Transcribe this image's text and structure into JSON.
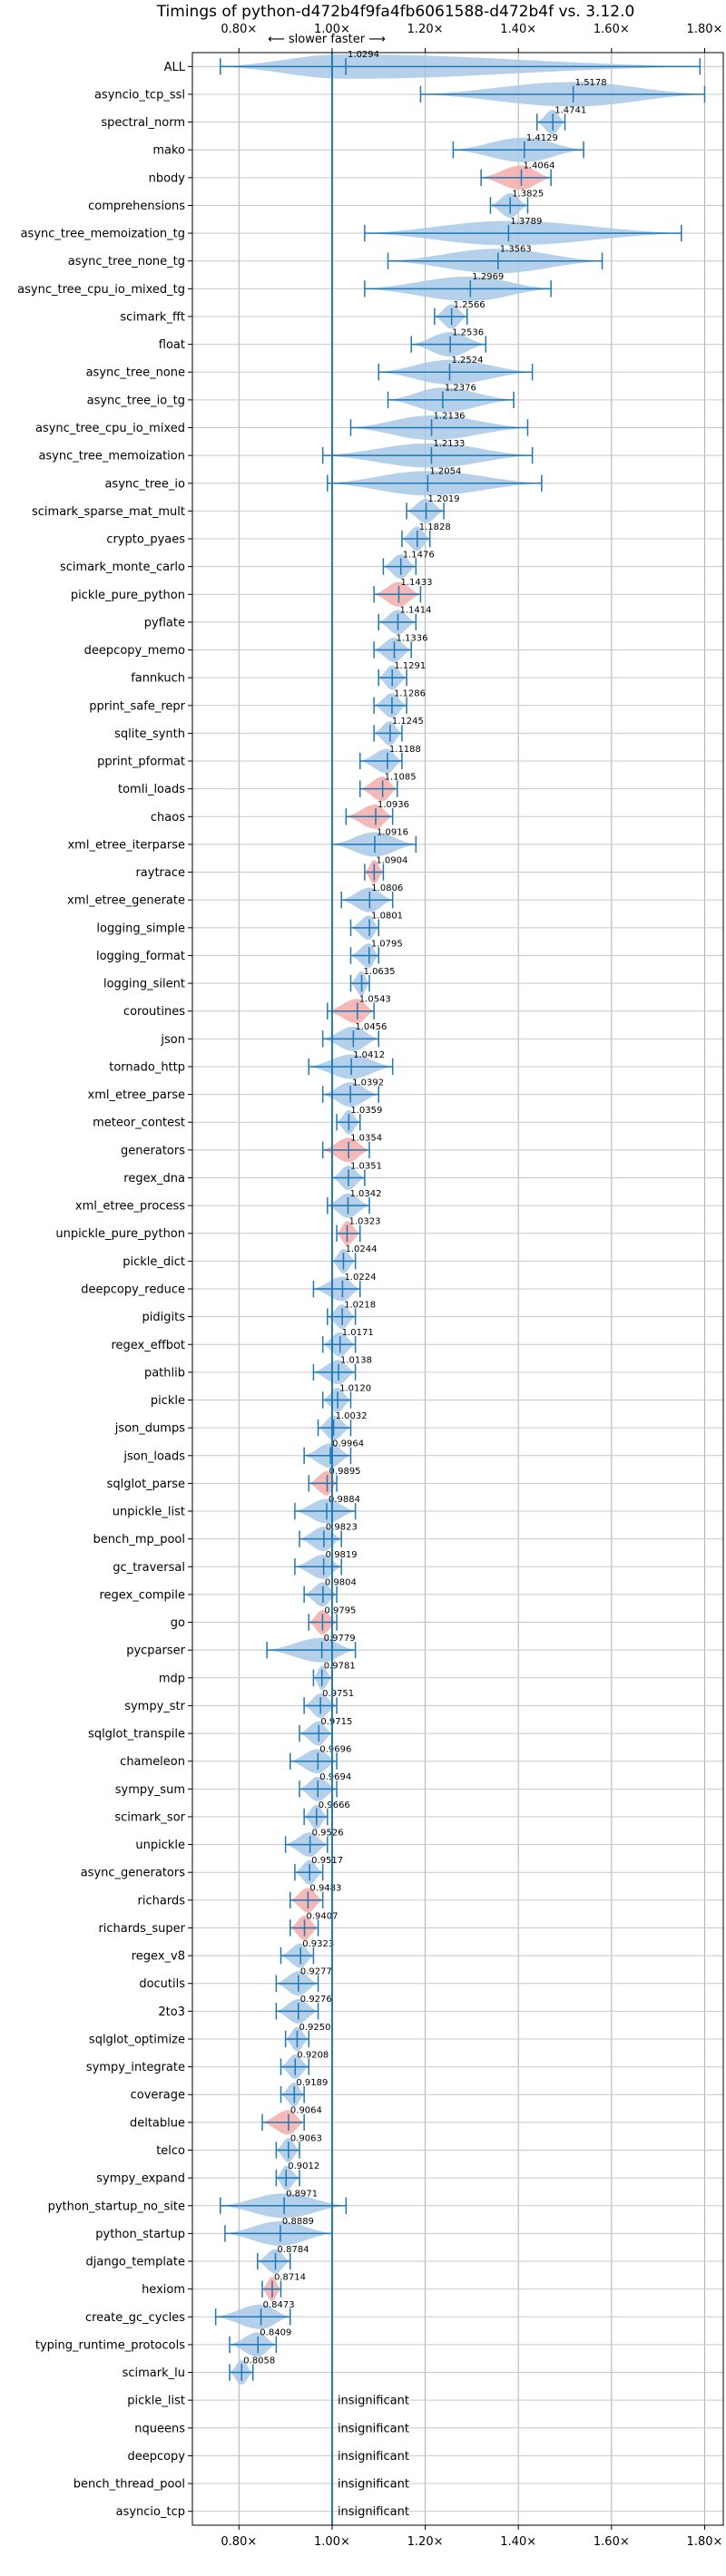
{
  "chart_data": {
    "type": "violin",
    "title": "Timings of python-d472b4f9fa4fb6061588-d472b4f vs. 3.12.0",
    "subtitle": "⟵ slower   faster ⟶",
    "xlim": [
      0.7,
      1.84
    ],
    "x_ticks": [
      0.8,
      1.0,
      1.2,
      1.4,
      1.6,
      1.8
    ],
    "x_tick_labels": [
      "0.80×",
      "1.00×",
      "1.20×",
      "1.40×",
      "1.60×",
      "1.80×"
    ],
    "reference_line": 1.0,
    "grid": true,
    "colors": {
      "faster": "#a8c8e6",
      "slower": "#f5aaaa",
      "line": "#1f77b4"
    },
    "insignificant_label": "insignificant",
    "benchmarks": [
      {
        "name": "ALL",
        "value": 1.0294,
        "min": 0.76,
        "max": 1.79,
        "dir": "faster"
      },
      {
        "name": "asyncio_tcp_ssl",
        "value": 1.5178,
        "min": 1.19,
        "max": 1.8,
        "dir": "faster"
      },
      {
        "name": "spectral_norm",
        "value": 1.4741,
        "min": 1.44,
        "max": 1.5,
        "dir": "faster"
      },
      {
        "name": "mako",
        "value": 1.4129,
        "min": 1.26,
        "max": 1.54,
        "dir": "faster"
      },
      {
        "name": "nbody",
        "value": 1.4064,
        "min": 1.32,
        "max": 1.47,
        "dir": "slower"
      },
      {
        "name": "comprehensions",
        "value": 1.3825,
        "min": 1.34,
        "max": 1.42,
        "dir": "faster"
      },
      {
        "name": "async_tree_memoization_tg",
        "value": 1.3789,
        "min": 1.07,
        "max": 1.75,
        "dir": "faster"
      },
      {
        "name": "async_tree_none_tg",
        "value": 1.3563,
        "min": 1.12,
        "max": 1.58,
        "dir": "faster"
      },
      {
        "name": "async_tree_cpu_io_mixed_tg",
        "value": 1.2969,
        "min": 1.07,
        "max": 1.47,
        "dir": "faster"
      },
      {
        "name": "scimark_fft",
        "value": 1.2566,
        "min": 1.22,
        "max": 1.29,
        "dir": "faster"
      },
      {
        "name": "float",
        "value": 1.2536,
        "min": 1.17,
        "max": 1.33,
        "dir": "faster"
      },
      {
        "name": "async_tree_none",
        "value": 1.2524,
        "min": 1.1,
        "max": 1.43,
        "dir": "faster"
      },
      {
        "name": "async_tree_io_tg",
        "value": 1.2376,
        "min": 1.12,
        "max": 1.39,
        "dir": "faster"
      },
      {
        "name": "async_tree_cpu_io_mixed",
        "value": 1.2136,
        "min": 1.04,
        "max": 1.42,
        "dir": "faster"
      },
      {
        "name": "async_tree_memoization",
        "value": 1.2133,
        "min": 0.98,
        "max": 1.43,
        "dir": "faster"
      },
      {
        "name": "async_tree_io",
        "value": 1.2054,
        "min": 0.99,
        "max": 1.45,
        "dir": "faster"
      },
      {
        "name": "scimark_sparse_mat_mult",
        "value": 1.2019,
        "min": 1.16,
        "max": 1.24,
        "dir": "faster"
      },
      {
        "name": "crypto_pyaes",
        "value": 1.1828,
        "min": 1.15,
        "max": 1.21,
        "dir": "faster"
      },
      {
        "name": "scimark_monte_carlo",
        "value": 1.1476,
        "min": 1.11,
        "max": 1.18,
        "dir": "faster"
      },
      {
        "name": "pickle_pure_python",
        "value": 1.1433,
        "min": 1.09,
        "max": 1.19,
        "dir": "slower"
      },
      {
        "name": "pyflate",
        "value": 1.1414,
        "min": 1.1,
        "max": 1.18,
        "dir": "faster"
      },
      {
        "name": "deepcopy_memo",
        "value": 1.1336,
        "min": 1.09,
        "max": 1.17,
        "dir": "faster"
      },
      {
        "name": "fannkuch",
        "value": 1.1291,
        "min": 1.1,
        "max": 1.16,
        "dir": "faster"
      },
      {
        "name": "pprint_safe_repr",
        "value": 1.1286,
        "min": 1.09,
        "max": 1.16,
        "dir": "faster"
      },
      {
        "name": "sqlite_synth",
        "value": 1.1245,
        "min": 1.09,
        "max": 1.15,
        "dir": "faster"
      },
      {
        "name": "pprint_pformat",
        "value": 1.1188,
        "min": 1.06,
        "max": 1.15,
        "dir": "faster"
      },
      {
        "name": "tomli_loads",
        "value": 1.1085,
        "min": 1.06,
        "max": 1.14,
        "dir": "slower"
      },
      {
        "name": "chaos",
        "value": 1.0936,
        "min": 1.03,
        "max": 1.13,
        "dir": "slower"
      },
      {
        "name": "xml_etree_iterparse",
        "value": 1.0916,
        "min": 1.0,
        "max": 1.18,
        "dir": "faster"
      },
      {
        "name": "raytrace",
        "value": 1.0904,
        "min": 1.07,
        "max": 1.11,
        "dir": "slower"
      },
      {
        "name": "xml_etree_generate",
        "value": 1.0806,
        "min": 1.02,
        "max": 1.13,
        "dir": "faster"
      },
      {
        "name": "logging_simple",
        "value": 1.0801,
        "min": 1.04,
        "max": 1.1,
        "dir": "faster"
      },
      {
        "name": "logging_format",
        "value": 1.0795,
        "min": 1.04,
        "max": 1.1,
        "dir": "faster"
      },
      {
        "name": "logging_silent",
        "value": 1.0635,
        "min": 1.04,
        "max": 1.08,
        "dir": "faster"
      },
      {
        "name": "coroutines",
        "value": 1.0543,
        "min": 0.99,
        "max": 1.09,
        "dir": "slower"
      },
      {
        "name": "json",
        "value": 1.0456,
        "min": 0.98,
        "max": 1.1,
        "dir": "faster"
      },
      {
        "name": "tornado_http",
        "value": 1.0412,
        "min": 0.95,
        "max": 1.13,
        "dir": "faster"
      },
      {
        "name": "xml_etree_parse",
        "value": 1.0392,
        "min": 0.98,
        "max": 1.1,
        "dir": "faster"
      },
      {
        "name": "meteor_contest",
        "value": 1.0359,
        "min": 1.01,
        "max": 1.06,
        "dir": "faster"
      },
      {
        "name": "generators",
        "value": 1.0354,
        "min": 0.98,
        "max": 1.08,
        "dir": "slower"
      },
      {
        "name": "regex_dna",
        "value": 1.0351,
        "min": 1.0,
        "max": 1.07,
        "dir": "faster"
      },
      {
        "name": "xml_etree_process",
        "value": 1.0342,
        "min": 0.99,
        "max": 1.08,
        "dir": "faster"
      },
      {
        "name": "unpickle_pure_python",
        "value": 1.0323,
        "min": 1.01,
        "max": 1.06,
        "dir": "slower"
      },
      {
        "name": "pickle_dict",
        "value": 1.0244,
        "min": 1.0,
        "max": 1.05,
        "dir": "faster"
      },
      {
        "name": "deepcopy_reduce",
        "value": 1.0224,
        "min": 0.96,
        "max": 1.06,
        "dir": "faster"
      },
      {
        "name": "pidigits",
        "value": 1.0218,
        "min": 0.99,
        "max": 1.05,
        "dir": "faster"
      },
      {
        "name": "regex_effbot",
        "value": 1.0171,
        "min": 0.98,
        "max": 1.05,
        "dir": "faster"
      },
      {
        "name": "pathlib",
        "value": 1.0138,
        "min": 0.96,
        "max": 1.05,
        "dir": "faster"
      },
      {
        "name": "pickle",
        "value": 1.012,
        "min": 0.98,
        "max": 1.04,
        "dir": "faster"
      },
      {
        "name": "json_dumps",
        "value": 1.0032,
        "min": 0.97,
        "max": 1.04,
        "dir": "faster"
      },
      {
        "name": "json_loads",
        "value": 0.9964,
        "min": 0.94,
        "max": 1.04,
        "dir": "faster"
      },
      {
        "name": "sqlglot_parse",
        "value": 0.9895,
        "min": 0.95,
        "max": 1.01,
        "dir": "slower"
      },
      {
        "name": "unpickle_list",
        "value": 0.9884,
        "min": 0.92,
        "max": 1.05,
        "dir": "faster"
      },
      {
        "name": "bench_mp_pool",
        "value": 0.9823,
        "min": 0.93,
        "max": 1.02,
        "dir": "faster"
      },
      {
        "name": "gc_traversal",
        "value": 0.9819,
        "min": 0.92,
        "max": 1.02,
        "dir": "faster"
      },
      {
        "name": "regex_compile",
        "value": 0.9804,
        "min": 0.94,
        "max": 1.01,
        "dir": "faster"
      },
      {
        "name": "go",
        "value": 0.9795,
        "min": 0.95,
        "max": 1.01,
        "dir": "slower"
      },
      {
        "name": "pycparser",
        "value": 0.9779,
        "min": 0.86,
        "max": 1.05,
        "dir": "faster"
      },
      {
        "name": "mdp",
        "value": 0.9781,
        "min": 0.96,
        "max": 1.0,
        "dir": "faster"
      },
      {
        "name": "sympy_str",
        "value": 0.9751,
        "min": 0.94,
        "max": 1.01,
        "dir": "faster"
      },
      {
        "name": "sqlglot_transpile",
        "value": 0.9715,
        "min": 0.93,
        "max": 1.0,
        "dir": "faster"
      },
      {
        "name": "chameleon",
        "value": 0.9696,
        "min": 0.91,
        "max": 1.01,
        "dir": "faster"
      },
      {
        "name": "sympy_sum",
        "value": 0.9694,
        "min": 0.93,
        "max": 1.01,
        "dir": "faster"
      },
      {
        "name": "scimark_sor",
        "value": 0.9666,
        "min": 0.94,
        "max": 0.99,
        "dir": "faster"
      },
      {
        "name": "unpickle",
        "value": 0.9526,
        "min": 0.9,
        "max": 0.99,
        "dir": "faster"
      },
      {
        "name": "async_generators",
        "value": 0.9517,
        "min": 0.92,
        "max": 0.98,
        "dir": "faster"
      },
      {
        "name": "richards",
        "value": 0.9483,
        "min": 0.91,
        "max": 0.98,
        "dir": "slower"
      },
      {
        "name": "richards_super",
        "value": 0.9407,
        "min": 0.91,
        "max": 0.97,
        "dir": "slower"
      },
      {
        "name": "regex_v8",
        "value": 0.9323,
        "min": 0.89,
        "max": 0.96,
        "dir": "faster"
      },
      {
        "name": "docutils",
        "value": 0.9277,
        "min": 0.88,
        "max": 0.97,
        "dir": "faster"
      },
      {
        "name": "2to3",
        "value": 0.9276,
        "min": 0.88,
        "max": 0.97,
        "dir": "faster"
      },
      {
        "name": "sqlglot_optimize",
        "value": 0.925,
        "min": 0.9,
        "max": 0.95,
        "dir": "faster"
      },
      {
        "name": "sympy_integrate",
        "value": 0.9208,
        "min": 0.89,
        "max": 0.95,
        "dir": "faster"
      },
      {
        "name": "coverage",
        "value": 0.9189,
        "min": 0.89,
        "max": 0.94,
        "dir": "faster"
      },
      {
        "name": "deltablue",
        "value": 0.9064,
        "min": 0.85,
        "max": 0.94,
        "dir": "slower"
      },
      {
        "name": "telco",
        "value": 0.9063,
        "min": 0.88,
        "max": 0.93,
        "dir": "faster"
      },
      {
        "name": "sympy_expand",
        "value": 0.9012,
        "min": 0.88,
        "max": 0.93,
        "dir": "faster"
      },
      {
        "name": "python_startup_no_site",
        "value": 0.8971,
        "min": 0.76,
        "max": 1.03,
        "dir": "faster"
      },
      {
        "name": "python_startup",
        "value": 0.8889,
        "min": 0.77,
        "max": 1.0,
        "dir": "faster"
      },
      {
        "name": "django_template",
        "value": 0.8784,
        "min": 0.84,
        "max": 0.91,
        "dir": "faster"
      },
      {
        "name": "hexiom",
        "value": 0.8714,
        "min": 0.85,
        "max": 0.89,
        "dir": "slower"
      },
      {
        "name": "create_gc_cycles",
        "value": 0.8473,
        "min": 0.75,
        "max": 0.91,
        "dir": "faster"
      },
      {
        "name": "typing_runtime_protocols",
        "value": 0.8409,
        "min": 0.78,
        "max": 0.88,
        "dir": "faster"
      },
      {
        "name": "scimark_lu",
        "value": 0.8058,
        "min": 0.78,
        "max": 0.83,
        "dir": "faster"
      },
      {
        "name": "pickle_list",
        "value": null,
        "insignificant": true
      },
      {
        "name": "nqueens",
        "value": null,
        "insignificant": true
      },
      {
        "name": "deepcopy",
        "value": null,
        "insignificant": true
      },
      {
        "name": "bench_thread_pool",
        "value": null,
        "insignificant": true
      },
      {
        "name": "asyncio_tcp",
        "value": null,
        "insignificant": true
      }
    ]
  }
}
